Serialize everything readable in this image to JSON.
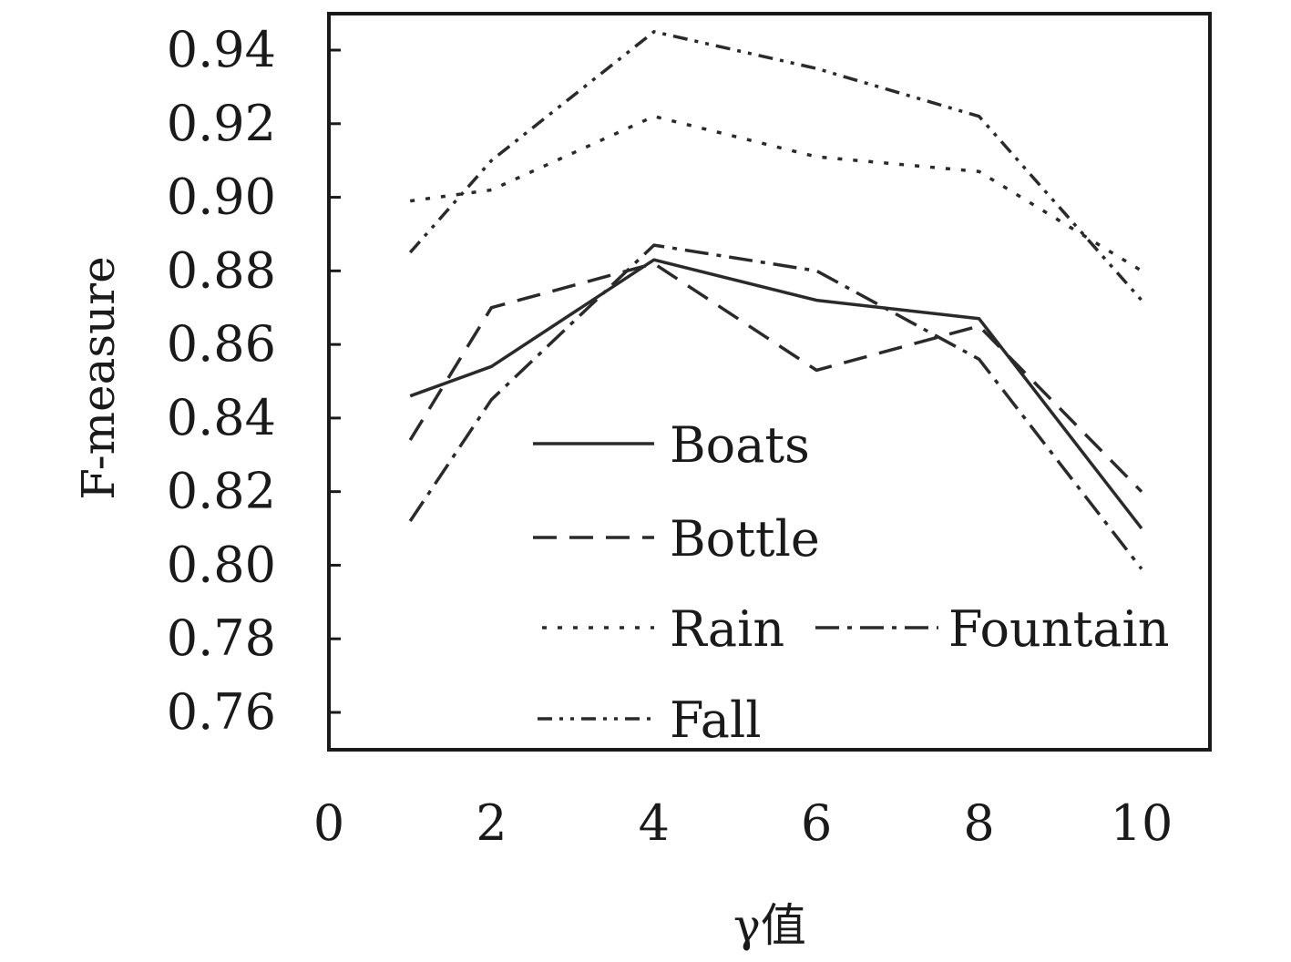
{
  "chart_data": {
    "type": "line",
    "title": "",
    "xlabel": "γ值",
    "ylabel": "F-measure",
    "xlim": [
      0,
      10
    ],
    "ylim": [
      0.75,
      0.95
    ],
    "xticks": [
      0,
      2,
      4,
      6,
      8,
      10
    ],
    "xtick_labels": [
      "0",
      "2",
      "4",
      "6",
      "8",
      "10"
    ],
    "yticks": [
      0.76,
      0.78,
      0.8,
      0.82,
      0.84,
      0.86,
      0.88,
      0.9,
      0.92,
      0.94
    ],
    "ytick_labels": [
      "0.76",
      "0.78",
      "0.80",
      "0.82",
      "0.84",
      "0.86",
      "0.88",
      "0.90",
      "0.92",
      "0.94"
    ],
    "grid": false,
    "legend_position": "lower-center-inside",
    "x": [
      1,
      2,
      4,
      6,
      8,
      10
    ],
    "series": [
      {
        "name": "Boats",
        "style": "solid",
        "color": "#2a2a2a",
        "values": [
          0.846,
          0.854,
          0.883,
          0.872,
          0.867,
          0.81
        ]
      },
      {
        "name": "Bottle",
        "style": "dashed",
        "color": "#2a2a2a",
        "values": [
          0.834,
          0.87,
          0.882,
          0.853,
          0.865,
          0.82
        ]
      },
      {
        "name": "Rain",
        "style": "dotted",
        "color": "#2a2a2a",
        "values": [
          0.899,
          0.902,
          0.922,
          0.911,
          0.907,
          0.88
        ]
      },
      {
        "name": "Fountain",
        "style": "dashdot",
        "color": "#2a2a2a",
        "values": [
          0.812,
          0.845,
          0.887,
          0.88,
          0.856,
          0.799
        ]
      },
      {
        "name": "Fall",
        "style": "dashdotdot",
        "color": "#2a2a2a",
        "values": [
          0.885,
          0.91,
          0.945,
          0.935,
          0.922,
          0.872
        ]
      }
    ]
  }
}
